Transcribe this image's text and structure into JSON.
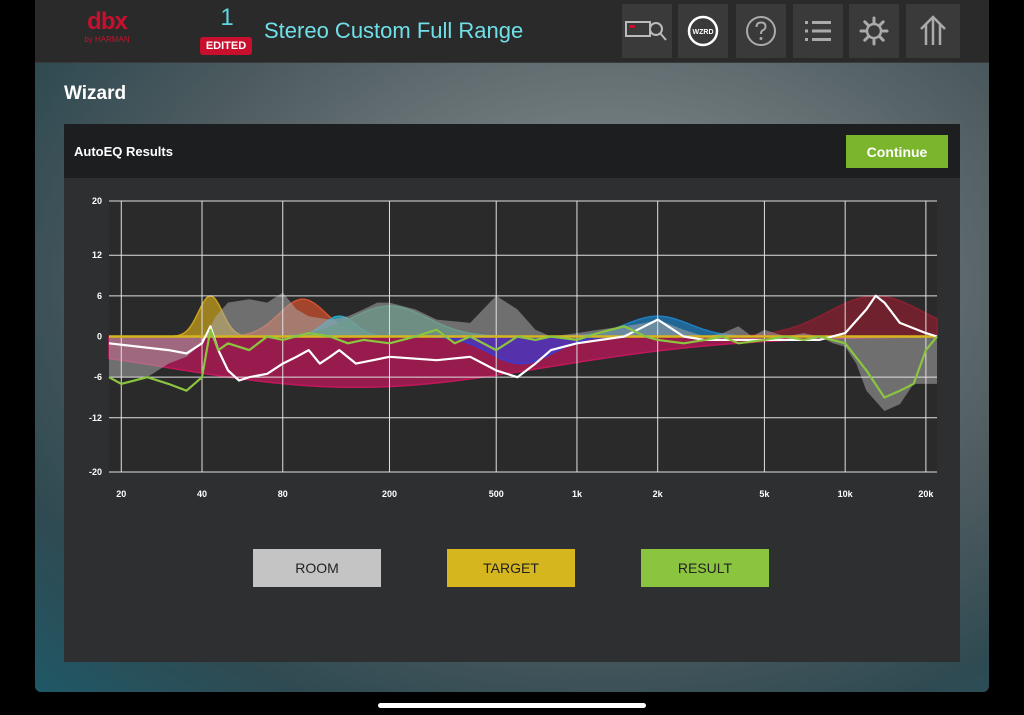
{
  "header": {
    "logo_brand": "dbx",
    "logo_sub": "by HARMAN",
    "preset_number": "1",
    "edited_badge": "EDITED",
    "preset_name": "Stereo Custom Full Range",
    "wizard_button_label": "WZRD",
    "icons": [
      "rta-mic-icon",
      "wizard-icon",
      "help-icon",
      "list-icon",
      "gear-icon",
      "home-icon"
    ]
  },
  "page": {
    "title": "Wizard"
  },
  "panel": {
    "title": "AutoEQ Results",
    "continue_label": "Continue"
  },
  "chart_data": {
    "type": "line",
    "x_scale": "log",
    "xlim": [
      18,
      22000
    ],
    "ylim": [
      -20,
      20
    ],
    "x_ticks": [
      20,
      40,
      80,
      200,
      500,
      1000,
      2000,
      5000,
      10000,
      20000
    ],
    "x_tick_labels": [
      "20",
      "40",
      "80",
      "200",
      "500",
      "1k",
      "2k",
      "5k",
      "10k",
      "20k"
    ],
    "y_ticks": [
      20,
      12,
      6,
      0,
      -6,
      -12,
      -20
    ],
    "y_tick_labels": [
      "20",
      "12",
      "6",
      "0",
      "-6",
      "-12",
      "-20"
    ],
    "grid": true,
    "series": [
      {
        "key": "room",
        "color": "#a8a8a8",
        "points": [
          [
            18,
            -6
          ],
          [
            25,
            -6
          ],
          [
            30,
            -4
          ],
          [
            35,
            -3
          ],
          [
            40,
            -1
          ],
          [
            45,
            3
          ],
          [
            50,
            5
          ],
          [
            60,
            5.5
          ],
          [
            70,
            5
          ],
          [
            80,
            6.5
          ],
          [
            90,
            4
          ],
          [
            100,
            3
          ],
          [
            120,
            2.5
          ],
          [
            140,
            3
          ],
          [
            160,
            4
          ],
          [
            180,
            5
          ],
          [
            200,
            5
          ],
          [
            250,
            4
          ],
          [
            300,
            2.5
          ],
          [
            400,
            2
          ],
          [
            500,
            6
          ],
          [
            600,
            4
          ],
          [
            700,
            1
          ],
          [
            800,
            0
          ],
          [
            1000,
            0.5
          ],
          [
            1200,
            1
          ],
          [
            1500,
            1.5
          ],
          [
            1800,
            2
          ],
          [
            2000,
            2.5
          ],
          [
            2500,
            1
          ],
          [
            3000,
            0
          ],
          [
            3500,
            0.5
          ],
          [
            4000,
            1.5
          ],
          [
            4500,
            0
          ],
          [
            5000,
            1
          ],
          [
            6000,
            0
          ],
          [
            7000,
            0.5
          ],
          [
            8000,
            0
          ],
          [
            9000,
            -1
          ],
          [
            10000,
            -1.5
          ],
          [
            11000,
            -4
          ],
          [
            12000,
            -8
          ],
          [
            14000,
            -11
          ],
          [
            16000,
            -10
          ],
          [
            18000,
            -7
          ],
          [
            20000,
            -7
          ],
          [
            22000,
            -7
          ]
        ]
      },
      {
        "key": "target",
        "color": "#d6b61f",
        "points": [
          [
            18,
            0
          ],
          [
            22000,
            0
          ]
        ]
      },
      {
        "key": "result",
        "color": "#8bc53f",
        "points": [
          [
            18,
            -6
          ],
          [
            20,
            -7
          ],
          [
            25,
            -6
          ],
          [
            30,
            -7
          ],
          [
            35,
            -8
          ],
          [
            40,
            -6
          ],
          [
            43,
            1
          ],
          [
            46,
            -2
          ],
          [
            50,
            -1
          ],
          [
            60,
            -2
          ],
          [
            70,
            0
          ],
          [
            80,
            -0.5
          ],
          [
            100,
            0.5
          ],
          [
            120,
            0
          ],
          [
            140,
            -1
          ],
          [
            160,
            -0.5
          ],
          [
            200,
            -1
          ],
          [
            250,
            0
          ],
          [
            300,
            1
          ],
          [
            350,
            -1
          ],
          [
            400,
            0
          ],
          [
            500,
            -2
          ],
          [
            600,
            0
          ],
          [
            700,
            -0.5
          ],
          [
            800,
            0
          ],
          [
            1000,
            -0.5
          ],
          [
            1200,
            0.5
          ],
          [
            1500,
            1.5
          ],
          [
            1800,
            0
          ],
          [
            2000,
            -0.5
          ],
          [
            2500,
            -1
          ],
          [
            3000,
            -0.5
          ],
          [
            3500,
            0
          ],
          [
            4000,
            -1
          ],
          [
            5000,
            -0.5
          ],
          [
            6000,
            0
          ],
          [
            7000,
            -0.5
          ],
          [
            8000,
            0
          ],
          [
            10000,
            -1
          ],
          [
            12000,
            -5
          ],
          [
            14000,
            -9
          ],
          [
            16000,
            -8
          ],
          [
            18000,
            -7
          ],
          [
            20000,
            -2
          ],
          [
            22000,
            0
          ]
        ]
      },
      {
        "key": "correction",
        "color": "#ffffff",
        "points": [
          [
            18,
            -1
          ],
          [
            30,
            -2
          ],
          [
            35,
            -2.5
          ],
          [
            40,
            -1
          ],
          [
            43,
            1.5
          ],
          [
            46,
            -2
          ],
          [
            50,
            -5
          ],
          [
            55,
            -6.5
          ],
          [
            60,
            -6
          ],
          [
            70,
            -5.5
          ],
          [
            80,
            -4
          ],
          [
            90,
            -3
          ],
          [
            100,
            -2
          ],
          [
            110,
            -4
          ],
          [
            120,
            -3
          ],
          [
            130,
            -2
          ],
          [
            150,
            -4
          ],
          [
            200,
            -3
          ],
          [
            300,
            -3.5
          ],
          [
            400,
            -3
          ],
          [
            500,
            -5
          ],
          [
            600,
            -6
          ],
          [
            700,
            -4
          ],
          [
            800,
            -2
          ],
          [
            1000,
            -1
          ],
          [
            1500,
            0
          ],
          [
            2000,
            2.5
          ],
          [
            2500,
            0
          ],
          [
            3000,
            -0.5
          ],
          [
            4000,
            -0.5
          ],
          [
            5000,
            -0.5
          ],
          [
            7000,
            -0.5
          ],
          [
            8000,
            -0.5
          ],
          [
            10000,
            0.5
          ],
          [
            12000,
            4
          ],
          [
            13000,
            6
          ],
          [
            14000,
            5
          ],
          [
            16000,
            2
          ],
          [
            20000,
            0.5
          ],
          [
            22000,
            0
          ]
        ]
      }
    ],
    "filters": [
      {
        "color": "#c9a21c",
        "freq": 43,
        "gain": 6,
        "q": 8
      },
      {
        "color": "#c2185b",
        "freq": 150,
        "gain": -7.5,
        "q": 0.5
      },
      {
        "color": "#d2502f",
        "freq": 95,
        "gain": 5.5,
        "q": 4
      },
      {
        "color": "#29a9c4",
        "freq": 130,
        "gain": 3,
        "q": 6
      },
      {
        "color": "#2a8c6c",
        "freq": 200,
        "gain": 4.5,
        "q": 2.5
      },
      {
        "color": "#3b3bd0",
        "freq": 620,
        "gain": -4,
        "q": 3
      },
      {
        "color": "#1f7fc0",
        "freq": 2000,
        "gain": 3,
        "q": 3
      },
      {
        "color": "#8a2030",
        "freq": 13000,
        "gain": 6,
        "q": 2
      }
    ]
  },
  "legend": {
    "room_label": "ROOM",
    "target_label": "TARGET",
    "result_label": "RESULT"
  }
}
